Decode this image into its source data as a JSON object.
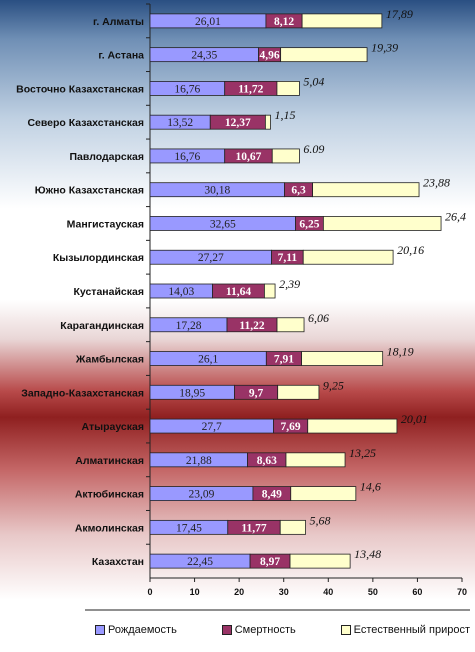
{
  "chart_data": {
    "type": "bar",
    "orientation": "horizontal",
    "stacked": true,
    "categories": [
      "г. Алматы",
      "г. Астана",
      "Восточно Казахстанская",
      "Северо Казахстанская",
      "Павлодарская",
      "Южно Казахстанская",
      "Мангистауская",
      "Кызылординская",
      "Кустанайская",
      "Карагандинская",
      "Жамбылская",
      "Западно-Казахстанская",
      "Атырауская",
      "Алматинская",
      "Актюбинская",
      "Акмолинская",
      "Казахстан"
    ],
    "series": [
      {
        "name": "Рождаемость",
        "color": "#9999ff",
        "values": [
          26.01,
          24.35,
          16.76,
          13.52,
          16.76,
          30.18,
          32.65,
          27.27,
          14.03,
          17.28,
          26.1,
          18.95,
          27.7,
          21.88,
          23.09,
          17.45,
          22.45
        ],
        "labels": [
          "26,01",
          "24,35",
          "16,76",
          "13,52",
          "16,76",
          "30,18",
          "32,65",
          "27,27",
          "14,03",
          "17,28",
          "26,1",
          "18,95",
          "27,7",
          "21,88",
          "23,09",
          "17,45",
          "22,45"
        ]
      },
      {
        "name": "Смертность",
        "color": "#993366",
        "values": [
          8.12,
          4.96,
          11.72,
          12.37,
          10.67,
          6.3,
          6.25,
          7.11,
          11.64,
          11.22,
          7.91,
          9.7,
          7.69,
          8.63,
          8.49,
          11.77,
          8.97
        ],
        "labels": [
          "8,12",
          "4,96",
          "11,72",
          "12,37",
          "10,67",
          "6,3",
          "6,25",
          "7,11",
          "11,64",
          "11,22",
          "7,91",
          "9,7",
          "7,69",
          "8,63",
          "8,49",
          "11,77",
          "8,97"
        ]
      },
      {
        "name": "Естественный прирост",
        "color": "#ffffcc",
        "values": [
          17.89,
          19.39,
          5.04,
          1.15,
          6.09,
          23.88,
          26.4,
          20.16,
          2.39,
          6.06,
          18.19,
          9.25,
          20.01,
          13.25,
          14.6,
          5.68,
          13.48
        ],
        "labels": [
          "17,89",
          "19,39",
          "5,04",
          "1,15",
          "6.09",
          "23,88",
          "26,4",
          "20,16",
          "2,39",
          "6,06",
          "18,19",
          "9,25",
          "20,01",
          "13,25",
          "14,6",
          "5,68",
          "13,48"
        ]
      }
    ],
    "xlim": [
      0,
      70
    ],
    "xticks": [
      "0",
      "10",
      "20",
      "30",
      "40",
      "50",
      "60",
      "70"
    ],
    "legend_position": "bottom",
    "grid": false
  }
}
